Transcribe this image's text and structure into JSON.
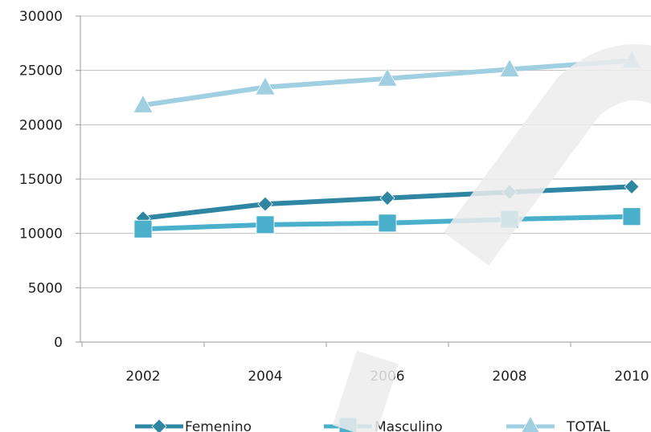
{
  "chart_data": {
    "type": "line",
    "title": "",
    "xlabel": "",
    "ylabel": "",
    "x": [
      "2002",
      "2004",
      "2006",
      "2008",
      "2010"
    ],
    "y_ticks": [
      "0",
      "5000",
      "10000",
      "15000",
      "20000",
      "25000",
      "30000"
    ],
    "ylim": [
      0,
      30000
    ],
    "grid": true,
    "legend_position": "bottom",
    "series": [
      {
        "name": "Femenino",
        "values": [
          11400,
          12700,
          13250,
          13800,
          14300
        ],
        "marker": "diamond",
        "color": "#2e86a3"
      },
      {
        "name": "Masculino",
        "values": [
          10400,
          10800,
          10950,
          11300,
          11550
        ],
        "marker": "square",
        "color": "#4aafca"
      },
      {
        "name": "TOTAL",
        "values": [
          21800,
          23450,
          24250,
          25100,
          25900
        ],
        "marker": "triangle",
        "color": "#9fcfe0"
      }
    ]
  }
}
